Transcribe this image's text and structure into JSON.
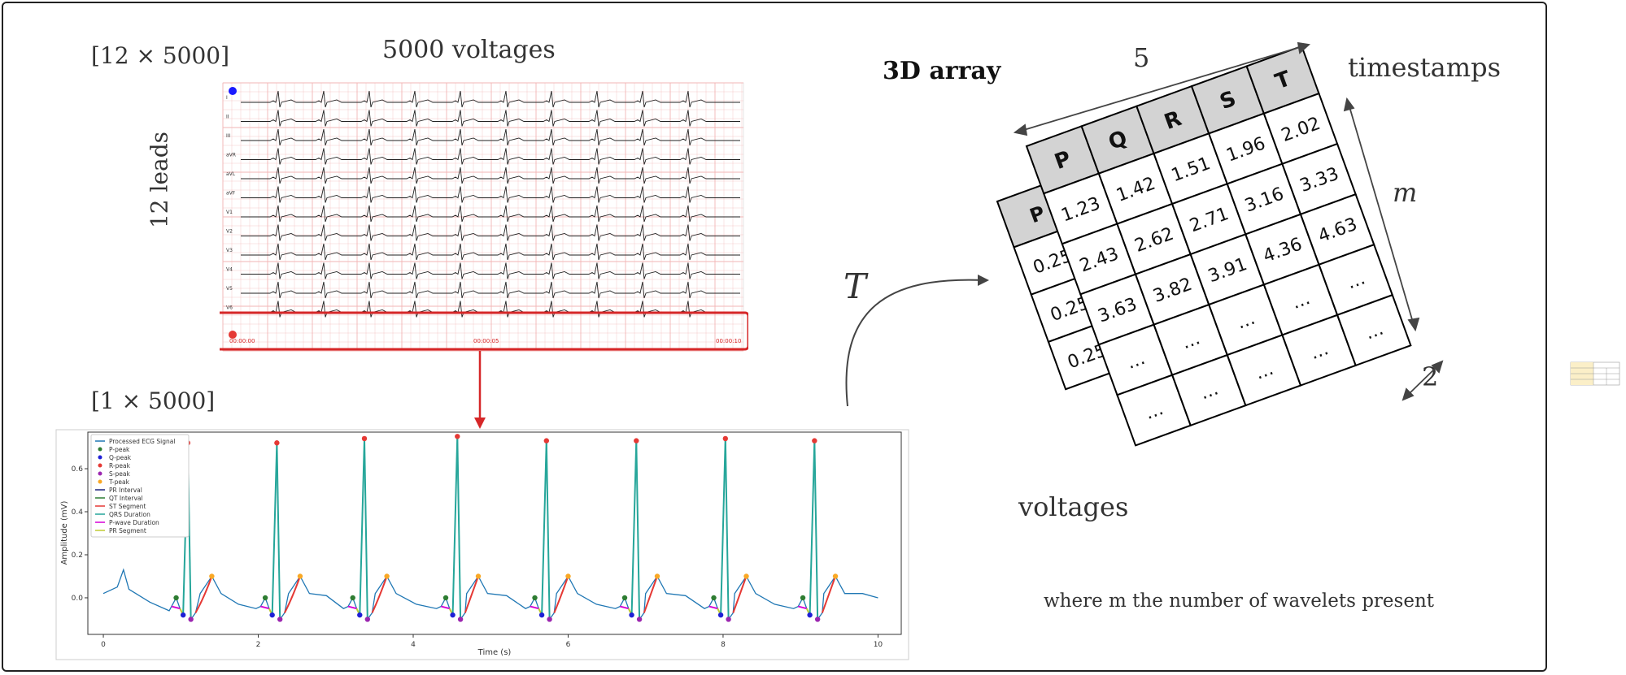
{
  "left_panel": {
    "dims_top": "[12 × 5000]",
    "voltages_label": "5000 voltages",
    "leads_label": "12 leads",
    "dims_bottom": "[1 × 5000]",
    "lead_names": [
      "I",
      "II",
      "III",
      "aVR",
      "aVL",
      "aVF",
      "V1",
      "V2",
      "V3",
      "V4",
      "V5",
      "V6"
    ],
    "time_ticks": [
      "00:00:00",
      "00:00:05",
      "00:00:10"
    ],
    "colors": {
      "highlight": "#d62728",
      "grid": "#f2b5b5",
      "trace": "#222222",
      "dot": "#1a1aff"
    }
  },
  "ecg_plot": {
    "ylabel": "Amplitude (mV)",
    "xlabel": "Time (s)",
    "x_ticks": [
      "0",
      "2",
      "4",
      "6",
      "8",
      "10"
    ],
    "y_ticks": [
      "0.6",
      "0.4",
      "0.2",
      "0.0"
    ],
    "legend": [
      {
        "label": "Processed ECG Signal",
        "kind": "line",
        "color": "#1f77b4"
      },
      {
        "label": "P-peak",
        "kind": "dot",
        "color": "#2e7d32"
      },
      {
        "label": "Q-peak",
        "kind": "dot",
        "color": "#1f1fd6"
      },
      {
        "label": "R-peak",
        "kind": "dot",
        "color": "#e53935"
      },
      {
        "label": "S-peak",
        "kind": "dot",
        "color": "#9c27b0"
      },
      {
        "label": "T-peak",
        "kind": "dot",
        "color": "#f9a825"
      },
      {
        "label": "PR Interval",
        "kind": "line",
        "color": "#1a237e"
      },
      {
        "label": "QT Interval",
        "kind": "line",
        "color": "#2e7d32"
      },
      {
        "label": "ST Segment",
        "kind": "line",
        "color": "#e53935"
      },
      {
        "label": "QRS Duration",
        "kind": "line",
        "color": "#26a69a"
      },
      {
        "label": "P-wave Duration",
        "kind": "line",
        "color": "#d500d5"
      },
      {
        "label": "PR Segment",
        "kind": "line",
        "color": "#c0ca33"
      }
    ]
  },
  "chart_data": {
    "type": "line",
    "xlabel": "Time (s)",
    "ylabel": "Amplitude (mV)",
    "xlim": [
      -0.2,
      10.3
    ],
    "ylim": [
      -0.17,
      0.77
    ],
    "beats": [
      {
        "p": 0.94,
        "q": 1.03,
        "r": 1.09,
        "s": 1.13,
        "t": 1.4,
        "r_amp": 0.72
      },
      {
        "p": 2.09,
        "q": 2.18,
        "r": 2.24,
        "s": 2.28,
        "t": 2.54,
        "r_amp": 0.72
      },
      {
        "p": 3.22,
        "q": 3.31,
        "r": 3.37,
        "s": 3.41,
        "t": 3.66,
        "r_amp": 0.74
      },
      {
        "p": 4.42,
        "q": 4.51,
        "r": 4.57,
        "s": 4.61,
        "t": 4.84,
        "r_amp": 0.75
      },
      {
        "p": 5.57,
        "q": 5.66,
        "r": 5.72,
        "s": 5.76,
        "t": 6.0,
        "r_amp": 0.73
      },
      {
        "p": 6.73,
        "q": 6.82,
        "r": 6.88,
        "s": 6.92,
        "t": 7.15,
        "r_amp": 0.73
      },
      {
        "p": 7.88,
        "q": 7.97,
        "r": 8.03,
        "s": 8.07,
        "t": 8.3,
        "r_amp": 0.74
      },
      {
        "p": 9.03,
        "q": 9.12,
        "r": 9.18,
        "s": 9.22,
        "t": 9.45,
        "r_amp": 0.73
      }
    ],
    "amplitudes": {
      "p": 0.0,
      "q": -0.08,
      "s": -0.1,
      "t": 0.1,
      "baseline": 0.0
    }
  },
  "array_panel": {
    "title": "3D array",
    "dim_top": "5",
    "timestamps_label": "timestamps",
    "m_label": "m",
    "two_label": "2",
    "T_label": "T",
    "voltages_label": "voltages",
    "note": "where m the number of wavelets present",
    "back_header": "P",
    "back_values": [
      "0.25",
      "0.25",
      "0.25"
    ],
    "headers": [
      "P",
      "Q",
      "R",
      "S",
      "T"
    ],
    "rows": [
      [
        "1.23",
        "1.42",
        "1.51",
        "1.96",
        "2.02"
      ],
      [
        "2.43",
        "2.62",
        "2.71",
        "3.16",
        "3.33"
      ],
      [
        "3.63",
        "3.82",
        "3.91",
        "4.36",
        "4.63"
      ],
      [
        "…",
        "…",
        "…",
        "…",
        "…"
      ],
      [
        "…",
        "…",
        "…",
        "…",
        "…"
      ]
    ]
  }
}
